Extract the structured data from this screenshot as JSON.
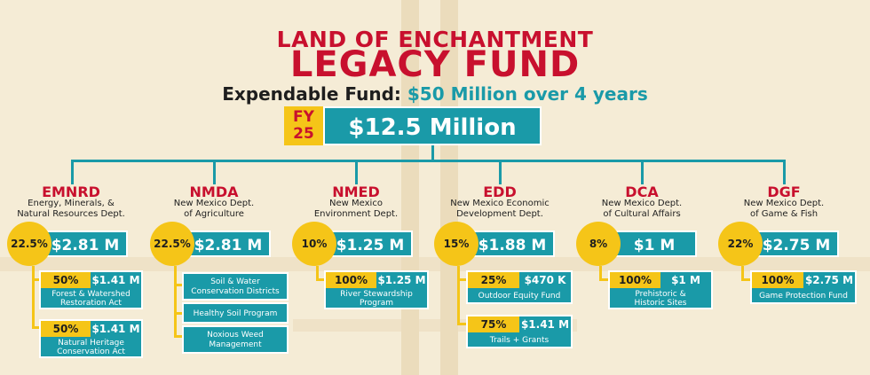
{
  "header": {
    "title_line1": "LAND OF ENCHANTMENT",
    "title_line2": "LEGACY FUND",
    "subtitle_label": "Expendable Fund:",
    "subtitle_value": "$50 Million over 4 years",
    "fy_line1": "FY",
    "fy_line2": "25",
    "total": "$12.5 Million"
  },
  "colors": {
    "red": "#c8102e",
    "teal": "#1a9aa8",
    "yellow": "#f5c518",
    "background": "#f5ecd6"
  },
  "departments": [
    {
      "code": "EMNRD",
      "line1": "Energy, Minerals, &",
      "line2": "Natural Resources Dept.",
      "pct": "22.5%",
      "amount": "$2.81 M",
      "programs": [
        {
          "pct": "50%",
          "amount": "$1.41 M",
          "line1": "Forest & Watershed",
          "line2": "Restoration Act"
        },
        {
          "pct": "50%",
          "amount": "$1.41 M",
          "line1": "Natural Heritage",
          "line2": "Conservation Act"
        }
      ]
    },
    {
      "code": "NMDA",
      "line1": "New Mexico Dept.",
      "line2": "of Agriculture",
      "pct": "22.5%",
      "amount": "$2.81 M",
      "programs": [
        {
          "line1": "Soil & Water",
          "line2": "Conservation Districts"
        },
        {
          "line1": "Healthy Soil Program",
          "line2": ""
        },
        {
          "line1": "Noxious Weed",
          "line2": "Management"
        }
      ]
    },
    {
      "code": "NMED",
      "line1": "New Mexico",
      "line2": "Environment Dept.",
      "pct": "10%",
      "amount": "$1.25 M",
      "programs": [
        {
          "pct": "100%",
          "amount": "$1.25 M",
          "line1": "River Stewardship",
          "line2": "Program"
        }
      ]
    },
    {
      "code": "EDD",
      "line1": "New Mexico Economic",
      "line2": "Development Dept.",
      "pct": "15%",
      "amount": "$1.88 M",
      "programs": [
        {
          "pct": "25%",
          "amount": "$470 K",
          "line1": "Outdoor Equity Fund",
          "line2": ""
        },
        {
          "pct": "75%",
          "amount": "$1.41 M",
          "line1": "Trails + Grants",
          "line2": ""
        }
      ]
    },
    {
      "code": "DCA",
      "line1": "New Mexico Dept.",
      "line2": "of Cultural Affairs",
      "pct": "8%",
      "amount": "$1 M",
      "programs": [
        {
          "pct": "100%",
          "amount": "$1 M",
          "line1": "Prehistoric &",
          "line2": "Historic Sites"
        }
      ]
    },
    {
      "code": "DGF",
      "line1": "New Mexico Dept.",
      "line2": "of Game & Fish",
      "pct": "22%",
      "amount": "$2.75 M",
      "programs": [
        {
          "pct": "100%",
          "amount": "$2.75 M",
          "line1": "Game Protection Fund",
          "line2": ""
        }
      ]
    }
  ]
}
